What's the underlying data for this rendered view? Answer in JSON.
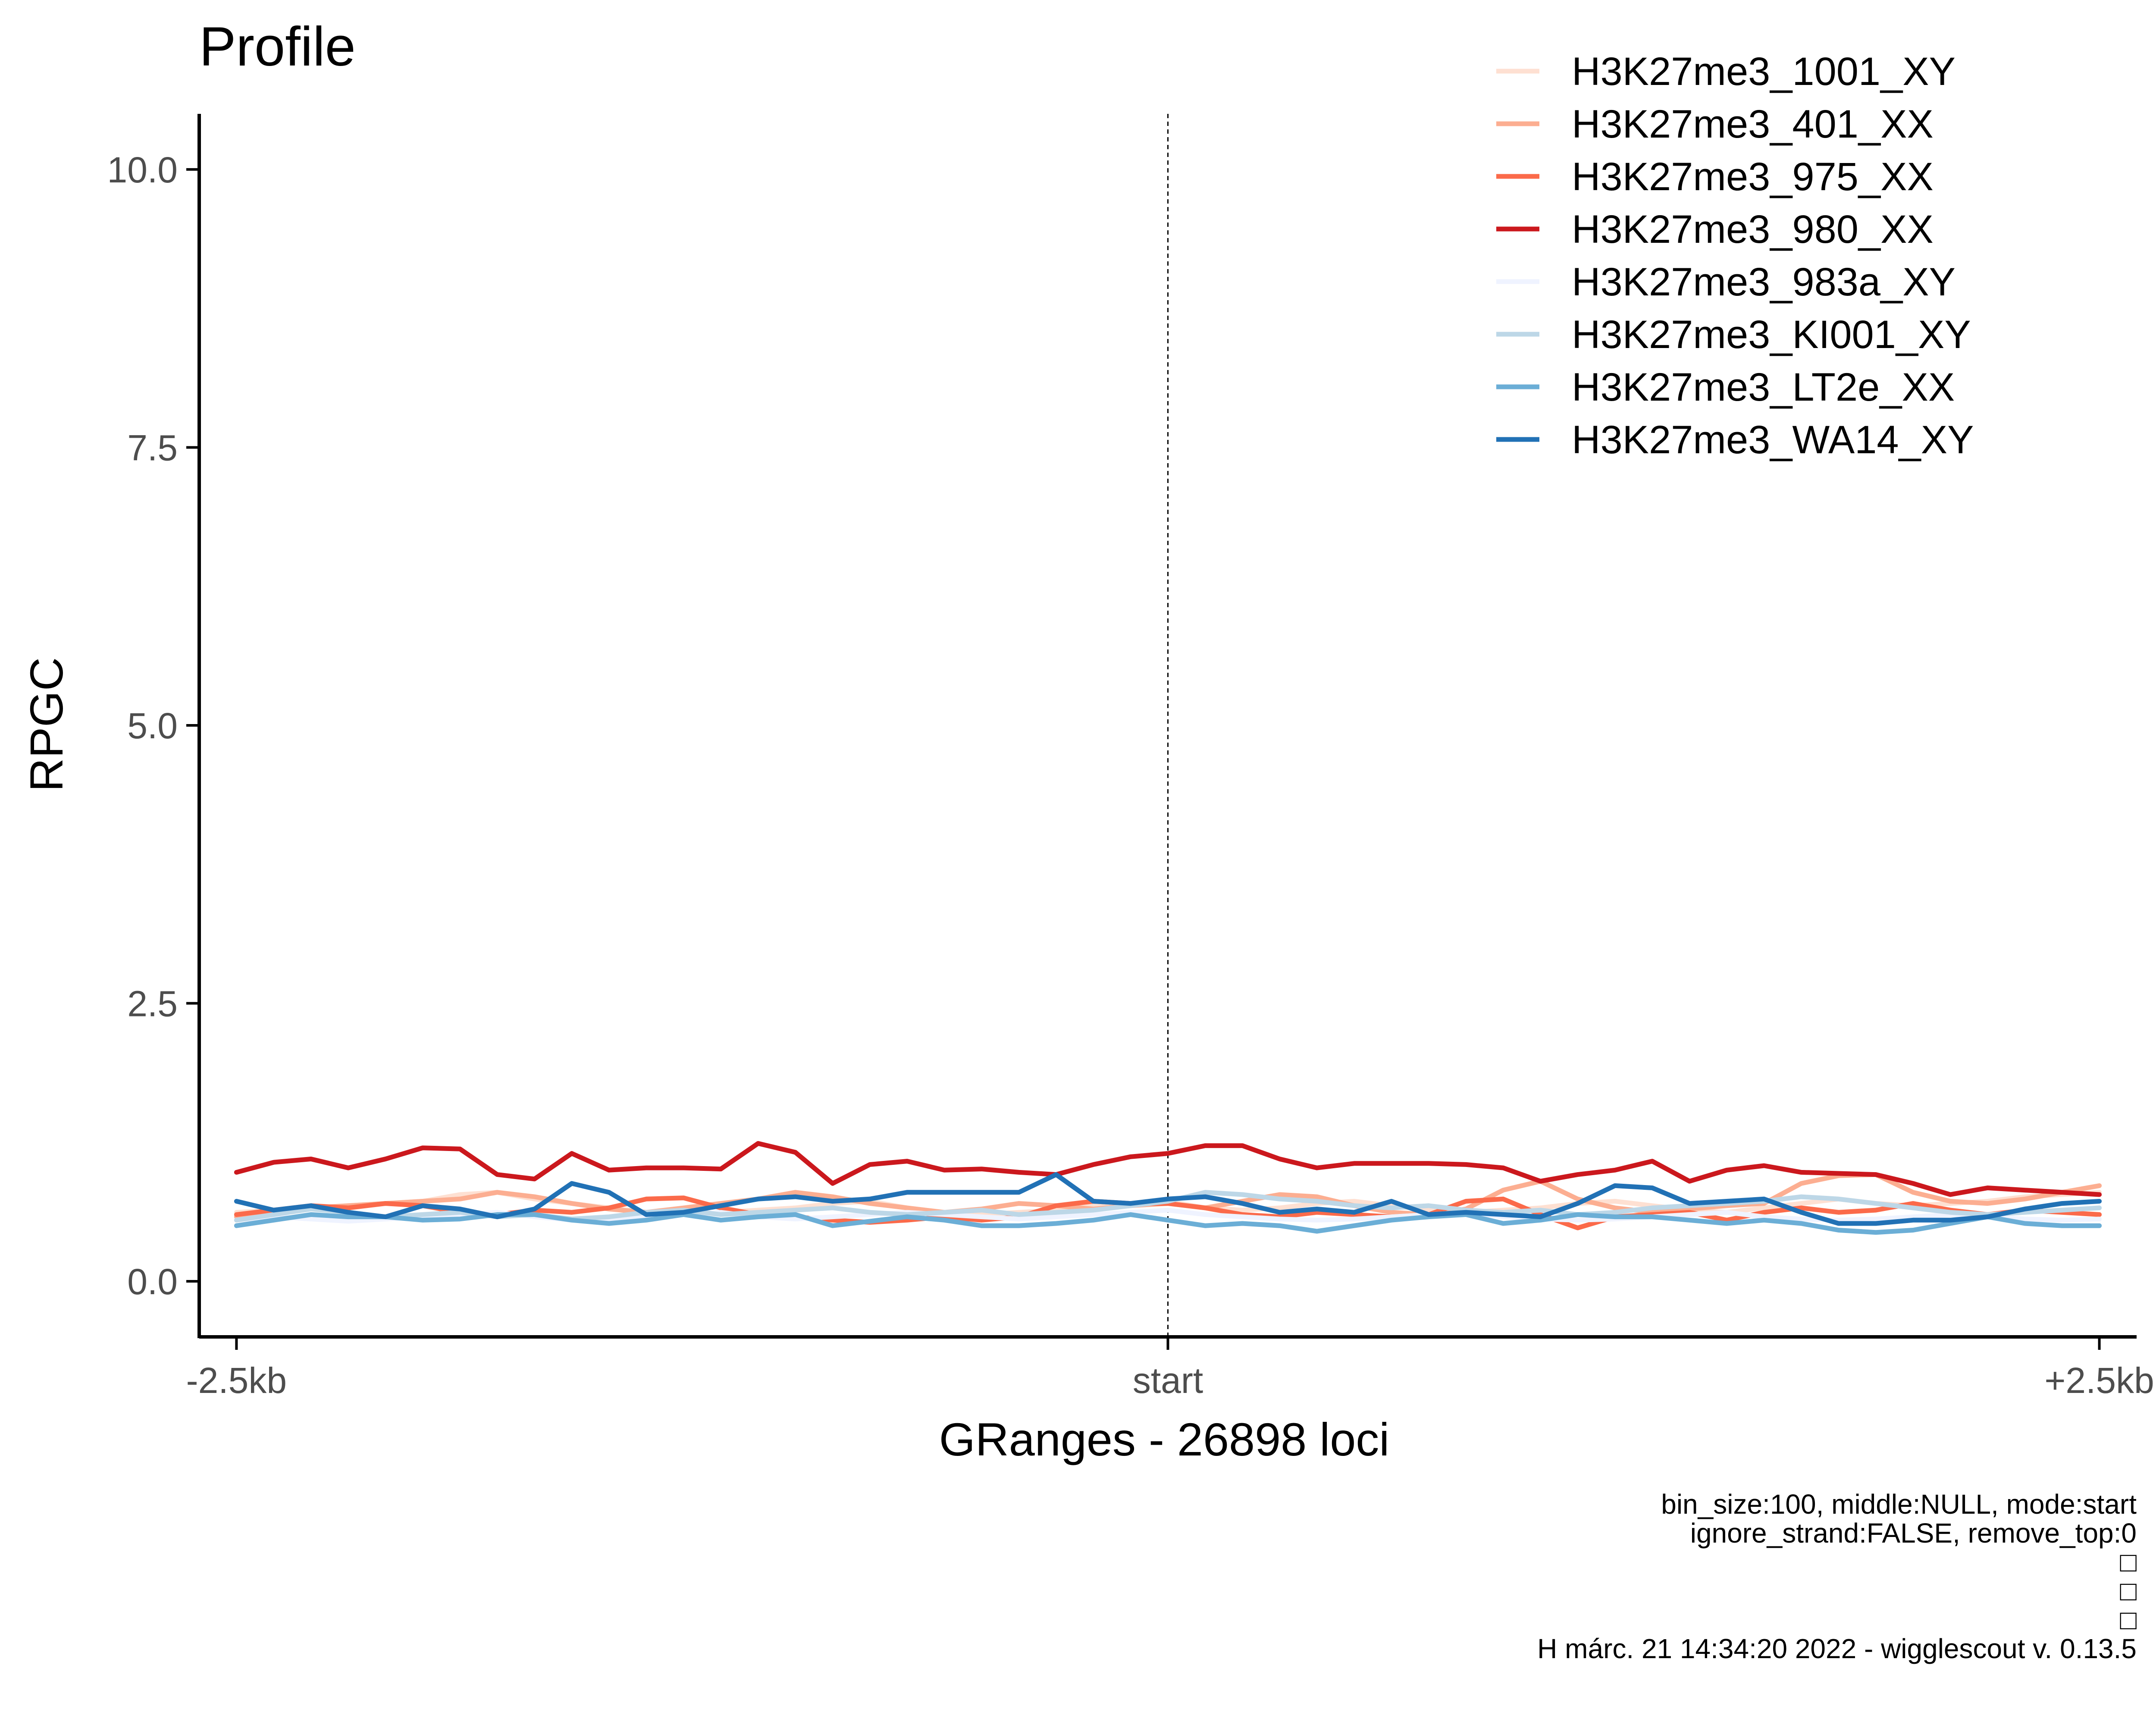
{
  "chart_data": {
    "type": "line",
    "title": "Profile",
    "xlabel": "GRanges - 26898 loci",
    "ylabel": "RPGC",
    "xlim": [
      -2.6,
      2.6
    ],
    "ylim": [
      -0.5,
      10.5
    ],
    "x_ticks": [
      {
        "value": -2.5,
        "label": "-2.5kb"
      },
      {
        "value": 0,
        "label": "start"
      },
      {
        "value": 2.5,
        "label": "+2.5kb"
      }
    ],
    "y_ticks": [
      {
        "value": 0,
        "label": "0.0"
      },
      {
        "value": 2.5,
        "label": "2.5"
      },
      {
        "value": 5,
        "label": "5.0"
      },
      {
        "value": 7.5,
        "label": "7.5"
      },
      {
        "value": 10,
        "label": "10.0"
      }
    ],
    "vline_x": 0,
    "grid": false,
    "legend_position": "top-right",
    "x": [
      -2.5,
      -2.4,
      -2.3,
      -2.2,
      -2.1,
      -2.0,
      -1.9,
      -1.8,
      -1.7,
      -1.6,
      -1.5,
      -1.4,
      -1.3,
      -1.2,
      -1.1,
      -1.0,
      -0.9,
      -0.8,
      -0.7,
      -0.6,
      -0.5,
      -0.4,
      -0.3,
      -0.2,
      -0.1,
      0.0,
      0.1,
      0.2,
      0.3,
      0.4,
      0.5,
      0.6,
      0.7,
      0.8,
      0.9,
      1.0,
      1.1,
      1.2,
      1.3,
      1.4,
      1.5,
      1.6,
      1.7,
      1.8,
      1.9,
      2.0,
      2.1,
      2.2,
      2.3,
      2.4,
      2.5
    ],
    "series": [
      {
        "name": "H3K27me3_1001_XY",
        "color": "#fee0d2",
        "values": [
          0.62,
          0.64,
          0.66,
          0.68,
          0.7,
          0.72,
          0.78,
          0.8,
          0.74,
          0.7,
          0.66,
          0.62,
          0.6,
          0.62,
          0.64,
          0.66,
          0.7,
          0.72,
          0.66,
          0.62,
          0.6,
          0.62,
          0.64,
          0.68,
          0.7,
          0.72,
          0.66,
          0.64,
          0.66,
          0.7,
          0.72,
          0.68,
          0.64,
          0.62,
          0.64,
          0.66,
          0.7,
          0.72,
          0.68,
          0.64,
          0.62,
          0.66,
          0.7,
          0.74,
          0.7,
          0.68,
          0.7,
          0.72,
          0.76,
          0.78,
          0.8
        ]
      },
      {
        "name": "H3K27me3_401_XX",
        "color": "#fcae91",
        "values": [
          0.58,
          0.62,
          0.66,
          0.68,
          0.7,
          0.72,
          0.74,
          0.8,
          0.76,
          0.7,
          0.65,
          0.62,
          0.66,
          0.7,
          0.74,
          0.8,
          0.76,
          0.7,
          0.66,
          0.62,
          0.65,
          0.7,
          0.68,
          0.65,
          0.68,
          0.7,
          0.66,
          0.72,
          0.78,
          0.76,
          0.68,
          0.62,
          0.6,
          0.65,
          0.82,
          0.9,
          0.74,
          0.66,
          0.62,
          0.65,
          0.68,
          0.7,
          0.88,
          0.95,
          0.96,
          0.8,
          0.72,
          0.7,
          0.74,
          0.8,
          0.86
        ]
      },
      {
        "name": "H3K27me3_975_XX",
        "color": "#fb6a4a",
        "values": [
          0.6,
          0.64,
          0.68,
          0.66,
          0.7,
          0.68,
          0.62,
          0.6,
          0.64,
          0.62,
          0.66,
          0.74,
          0.75,
          0.66,
          0.6,
          0.58,
          0.55,
          0.53,
          0.55,
          0.58,
          0.55,
          0.58,
          0.68,
          0.72,
          0.7,
          0.7,
          0.66,
          0.6,
          0.58,
          0.62,
          0.6,
          0.58,
          0.6,
          0.72,
          0.74,
          0.6,
          0.48,
          0.58,
          0.6,
          0.62,
          0.55,
          0.62,
          0.66,
          0.62,
          0.64,
          0.7,
          0.64,
          0.6,
          0.64,
          0.62,
          0.6
        ]
      },
      {
        "name": "H3K27me3_980_XX",
        "color": "#cb181d",
        "values": [
          0.98,
          1.07,
          1.1,
          1.02,
          1.1,
          1.2,
          1.19,
          0.96,
          0.92,
          1.15,
          1.0,
          1.02,
          1.02,
          1.01,
          1.24,
          1.16,
          0.88,
          1.05,
          1.08,
          1.0,
          1.01,
          0.98,
          0.96,
          1.05,
          1.12,
          1.15,
          1.22,
          1.22,
          1.1,
          1.02,
          1.06,
          1.06,
          1.06,
          1.05,
          1.02,
          0.9,
          0.96,
          1.0,
          1.08,
          0.9,
          1.0,
          1.04,
          0.98,
          0.97,
          0.96,
          0.88,
          0.78,
          0.84,
          0.82,
          0.8,
          0.78
        ]
      },
      {
        "name": "H3K27me3_983a_XY",
        "color": "#eff3ff",
        "values": [
          0.55,
          0.58,
          0.56,
          0.54,
          0.56,
          0.58,
          0.6,
          0.62,
          0.58,
          0.55,
          0.56,
          0.58,
          0.6,
          0.62,
          0.58,
          0.56,
          0.58,
          0.6,
          0.62,
          0.6,
          0.58,
          0.56,
          0.58,
          0.6,
          0.62,
          0.64,
          0.6,
          0.58,
          0.56,
          0.55,
          0.56,
          0.58,
          0.6,
          0.62,
          0.58,
          0.56,
          0.55,
          0.56,
          0.58,
          0.6,
          0.62,
          0.58,
          0.56,
          0.55,
          0.56,
          0.58,
          0.6,
          0.58,
          0.56,
          0.55,
          0.56
        ]
      },
      {
        "name": "H3K27me3_KI001_XY",
        "color": "#bdd7e7",
        "values": [
          0.55,
          0.6,
          0.65,
          0.62,
          0.58,
          0.6,
          0.62,
          0.58,
          0.6,
          0.56,
          0.58,
          0.62,
          0.64,
          0.6,
          0.62,
          0.64,
          0.66,
          0.62,
          0.6,
          0.62,
          0.64,
          0.6,
          0.62,
          0.64,
          0.68,
          0.72,
          0.8,
          0.78,
          0.74,
          0.72,
          0.68,
          0.66,
          0.68,
          0.64,
          0.62,
          0.64,
          0.6,
          0.62,
          0.66,
          0.68,
          0.7,
          0.72,
          0.76,
          0.74,
          0.7,
          0.66,
          0.62,
          0.6,
          0.62,
          0.64,
          0.66
        ]
      },
      {
        "name": "H3K27me3_LT2e_XX",
        "color": "#6baed6",
        "values": [
          0.5,
          0.55,
          0.6,
          0.58,
          0.58,
          0.55,
          0.56,
          0.6,
          0.6,
          0.55,
          0.52,
          0.55,
          0.6,
          0.55,
          0.58,
          0.6,
          0.5,
          0.54,
          0.58,
          0.55,
          0.5,
          0.5,
          0.52,
          0.55,
          0.6,
          0.55,
          0.5,
          0.52,
          0.5,
          0.45,
          0.5,
          0.55,
          0.58,
          0.6,
          0.52,
          0.55,
          0.6,
          0.58,
          0.58,
          0.55,
          0.52,
          0.55,
          0.52,
          0.46,
          0.44,
          0.46,
          0.52,
          0.58,
          0.52,
          0.5,
          0.5
        ]
      },
      {
        "name": "H3K27me3_WA14_XY",
        "color": "#2171b5",
        "values": [
          0.72,
          0.64,
          0.68,
          0.62,
          0.58,
          0.68,
          0.65,
          0.58,
          0.65,
          0.88,
          0.8,
          0.6,
          0.62,
          0.68,
          0.74,
          0.76,
          0.72,
          0.74,
          0.8,
          0.8,
          0.8,
          0.8,
          0.96,
          0.72,
          0.7,
          0.74,
          0.76,
          0.7,
          0.62,
          0.65,
          0.62,
          0.72,
          0.6,
          0.62,
          0.6,
          0.58,
          0.7,
          0.86,
          0.84,
          0.7,
          0.72,
          0.74,
          0.62,
          0.52,
          0.52,
          0.55,
          0.55,
          0.58,
          0.65,
          0.7,
          0.72
        ]
      }
    ]
  },
  "caption": {
    "lines": [
      "bin_size:100, middle:NULL, mode:start",
      "ignore_strand:FALSE, remove_top:0",
      "□",
      "□",
      "□",
      "H márc. 21 14:34:20 2022 - wigglescout v. 0.13.5"
    ]
  }
}
